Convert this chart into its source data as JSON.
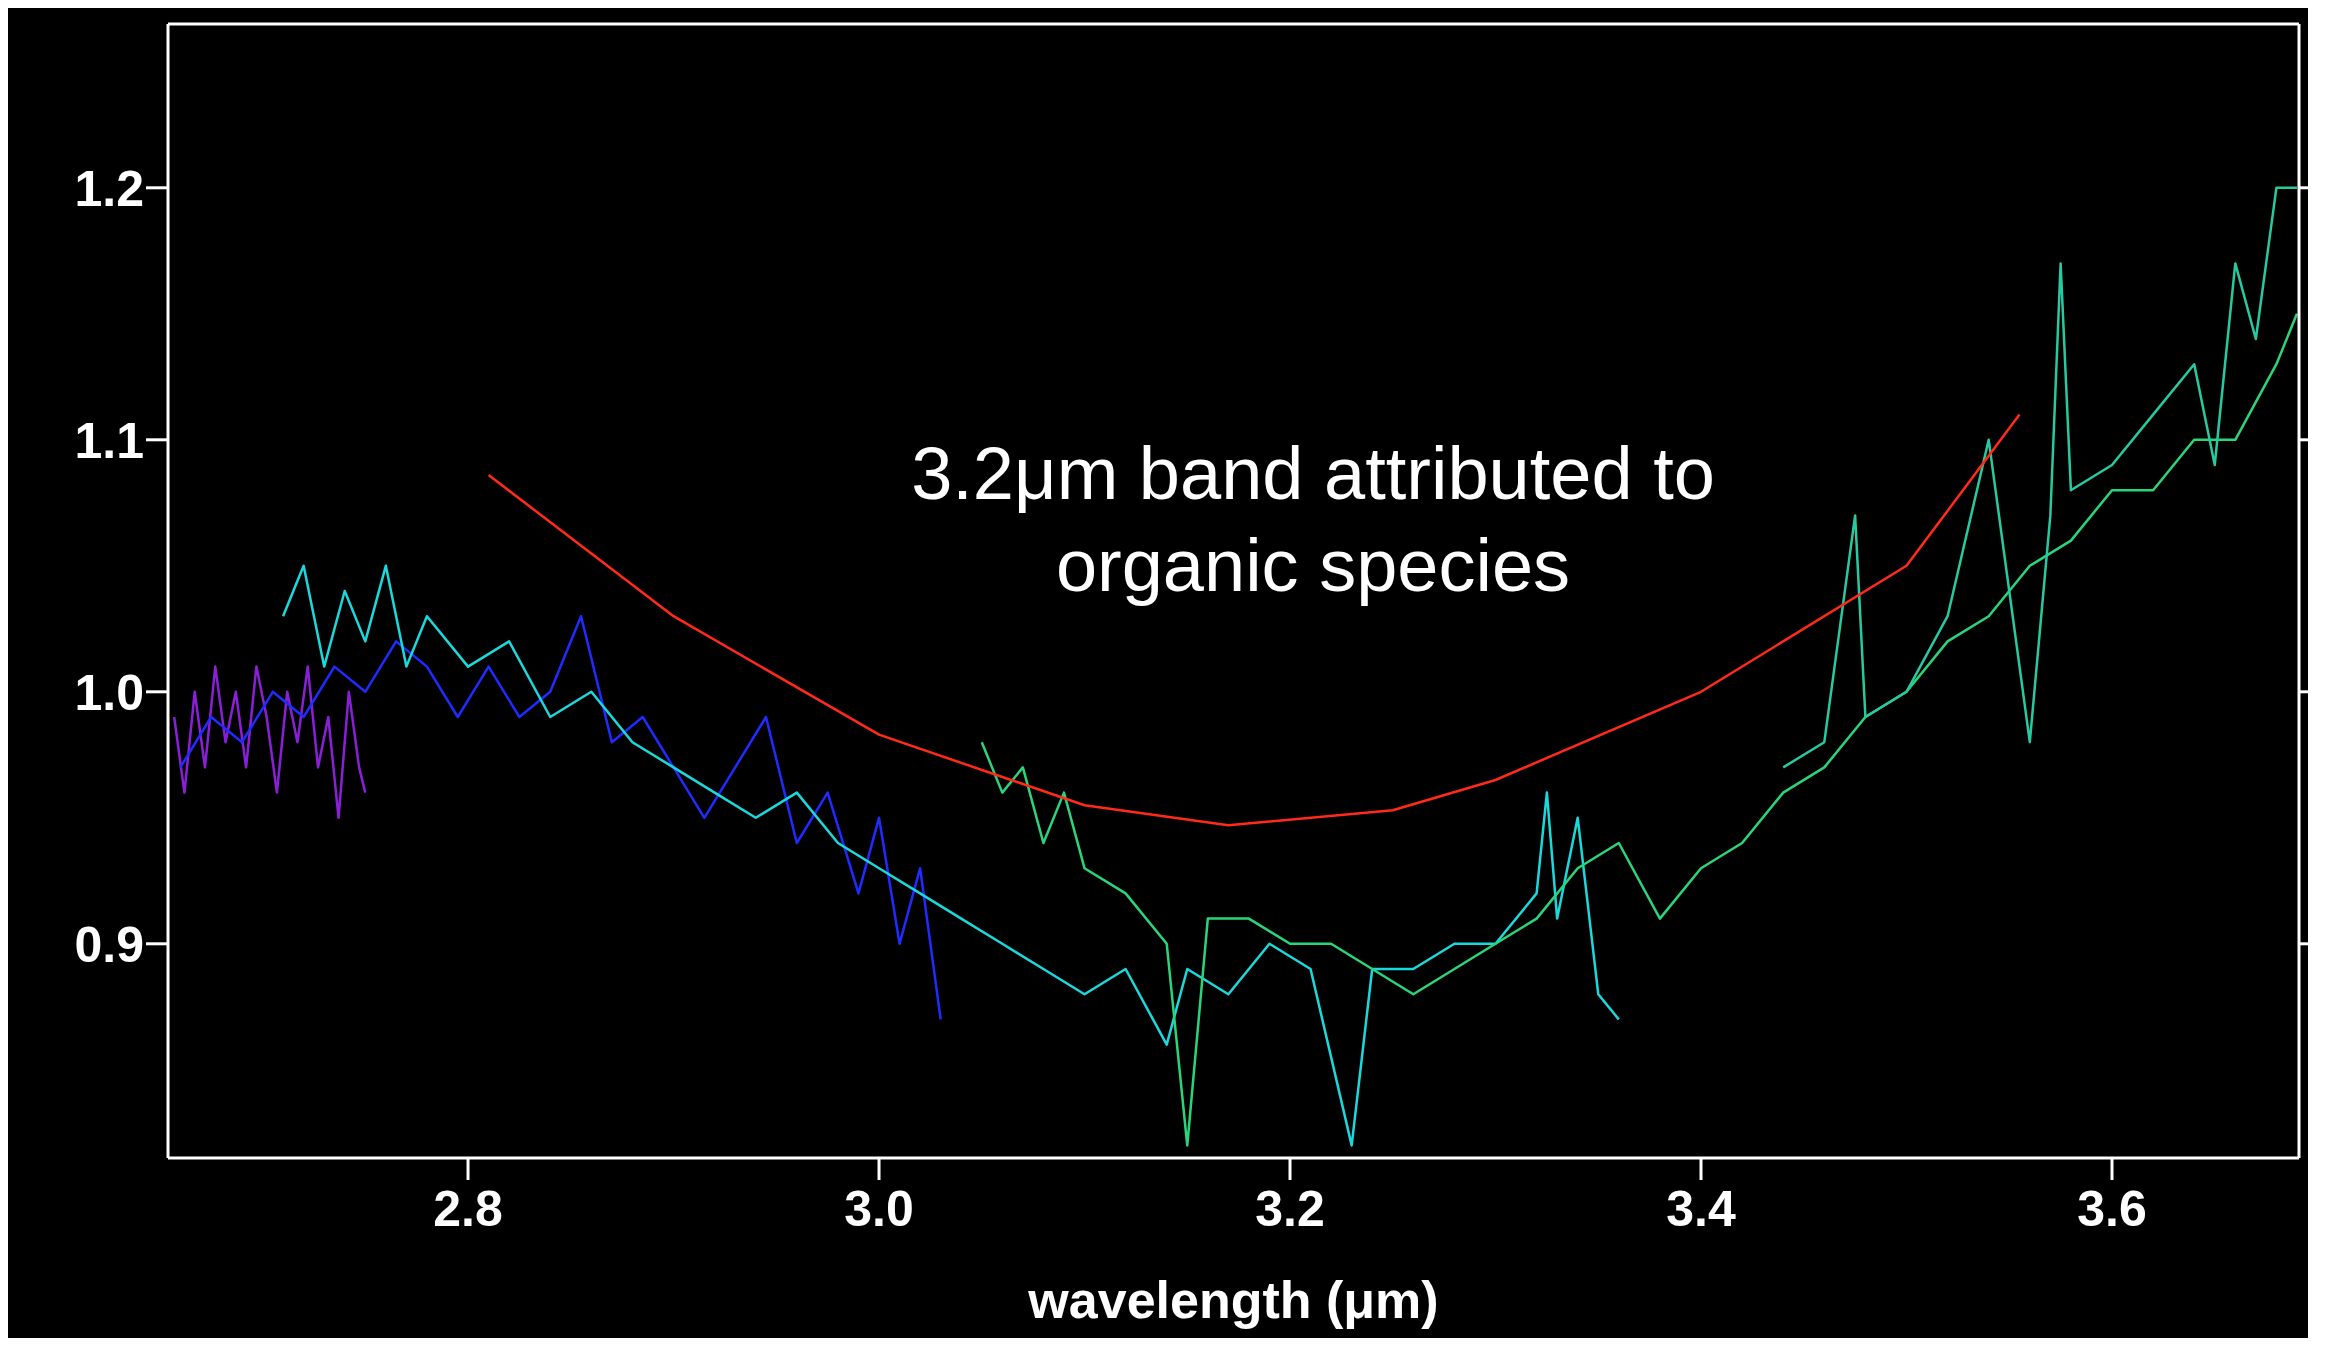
{
  "chart_data": {
    "type": "line",
    "xlabel": "wavelength (μm)",
    "annotations": [
      "3.2μm band attributed to organic species"
    ],
    "xlim": [
      2.654,
      3.691
    ],
    "ylim": [
      0.815,
      1.265
    ],
    "xticks": [
      2.8,
      {
        "value": 3.0,
        "label": "3.0"
      },
      3.2,
      3.4,
      3.6
    ],
    "yticks": [
      0.9,
      {
        "value": 1.0,
        "label": "1.0"
      },
      1.1,
      1.2
    ],
    "marker": "none",
    "line_style": "solid",
    "series": [
      {
        "color": "#8a1fd8",
        "x": [
          2.657,
          2.662,
          2.667,
          2.672,
          2.677,
          2.682,
          2.687,
          2.692,
          2.697,
          2.702,
          2.707,
          2.712,
          2.717,
          2.722,
          2.727,
          2.732,
          2.737,
          2.742,
          2.747,
          2.75
        ],
        "values": [
          0.99,
          0.96,
          1.0,
          0.97,
          1.01,
          0.98,
          1.0,
          0.97,
          1.01,
          0.99,
          0.96,
          1.0,
          0.98,
          1.01,
          0.97,
          0.99,
          0.95,
          1.0,
          0.97,
          0.96
        ]
      },
      {
        "color": "#1f2bff",
        "x": [
          2.66,
          2.675,
          2.69,
          2.705,
          2.72,
          2.735,
          2.75,
          2.765,
          2.78,
          2.795,
          2.81,
          2.825,
          2.84,
          2.855,
          2.87,
          2.885,
          2.9,
          2.915,
          2.93,
          2.945,
          2.96,
          2.975,
          2.99,
          3.0,
          3.01,
          3.02,
          3.03
        ],
        "values": [
          0.97,
          0.99,
          0.98,
          1.0,
          0.99,
          1.01,
          1.0,
          1.02,
          1.01,
          0.99,
          1.01,
          0.99,
          1.0,
          1.03,
          0.98,
          0.99,
          0.97,
          0.95,
          0.97,
          0.99,
          0.94,
          0.96,
          0.92,
          0.95,
          0.9,
          0.93,
          0.87
        ]
      },
      {
        "color": "#19d9dc",
        "x": [
          2.71,
          2.72,
          2.73,
          2.74,
          2.75,
          2.76,
          2.77,
          2.78,
          2.8,
          2.82,
          2.84,
          2.86,
          2.88,
          2.9,
          2.92,
          2.94,
          2.96,
          2.98,
          3.0,
          3.02,
          3.04,
          3.06,
          3.08,
          3.1,
          3.12,
          3.14,
          3.15,
          3.17,
          3.19,
          3.21,
          3.23,
          3.24,
          3.26,
          3.28,
          3.3,
          3.32,
          3.325,
          3.33,
          3.34,
          3.35,
          3.36
        ],
        "values": [
          1.03,
          1.05,
          1.01,
          1.04,
          1.02,
          1.05,
          1.01,
          1.03,
          1.01,
          1.02,
          0.99,
          1.0,
          0.98,
          0.97,
          0.96,
          0.95,
          0.96,
          0.94,
          0.93,
          0.92,
          0.91,
          0.9,
          0.89,
          0.88,
          0.89,
          0.86,
          0.89,
          0.88,
          0.9,
          0.89,
          0.82,
          0.89,
          0.89,
          0.9,
          0.9,
          0.92,
          0.96,
          0.91,
          0.95,
          0.88,
          0.87
        ]
      },
      {
        "color": "#2ad57a",
        "x": [
          3.05,
          3.06,
          3.07,
          3.08,
          3.09,
          3.1,
          3.12,
          3.14,
          3.15,
          3.16,
          3.18,
          3.2,
          3.22,
          3.24,
          3.26,
          3.28,
          3.3,
          3.32,
          3.34,
          3.36,
          3.38,
          3.4,
          3.42,
          3.44,
          3.46,
          3.48,
          3.5,
          3.52,
          3.54,
          3.56,
          3.58,
          3.6,
          3.62,
          3.64,
          3.66,
          3.68,
          3.69
        ],
        "values": [
          0.98,
          0.96,
          0.97,
          0.94,
          0.96,
          0.93,
          0.92,
          0.9,
          0.82,
          0.91,
          0.91,
          0.9,
          0.9,
          0.89,
          0.88,
          0.89,
          0.9,
          0.91,
          0.93,
          0.94,
          0.91,
          0.93,
          0.94,
          0.96,
          0.97,
          0.99,
          1.0,
          1.02,
          1.03,
          1.05,
          1.06,
          1.08,
          1.08,
          1.1,
          1.1,
          1.13,
          1.15
        ]
      },
      {
        "color": "#27c9a0",
        "x": [
          3.44,
          3.46,
          3.475,
          3.48,
          3.5,
          3.52,
          3.54,
          3.55,
          3.56,
          3.57,
          3.575,
          3.58,
          3.6,
          3.62,
          3.64,
          3.65,
          3.66,
          3.67,
          3.68,
          3.69
        ],
        "values": [
          0.97,
          0.98,
          1.07,
          0.99,
          1.0,
          1.03,
          1.1,
          1.04,
          0.98,
          1.07,
          1.17,
          1.08,
          1.09,
          1.11,
          1.13,
          1.09,
          1.17,
          1.14,
          1.2,
          1.2
        ]
      },
      {
        "color": "#ff2a1a",
        "x": [
          2.81,
          2.9,
          3.0,
          3.1,
          3.17,
          3.25,
          3.3,
          3.4,
          3.5,
          3.555
        ],
        "values": [
          1.086,
          1.03,
          0.983,
          0.955,
          0.947,
          0.953,
          0.965,
          1.0,
          1.05,
          1.11
        ]
      }
    ]
  }
}
